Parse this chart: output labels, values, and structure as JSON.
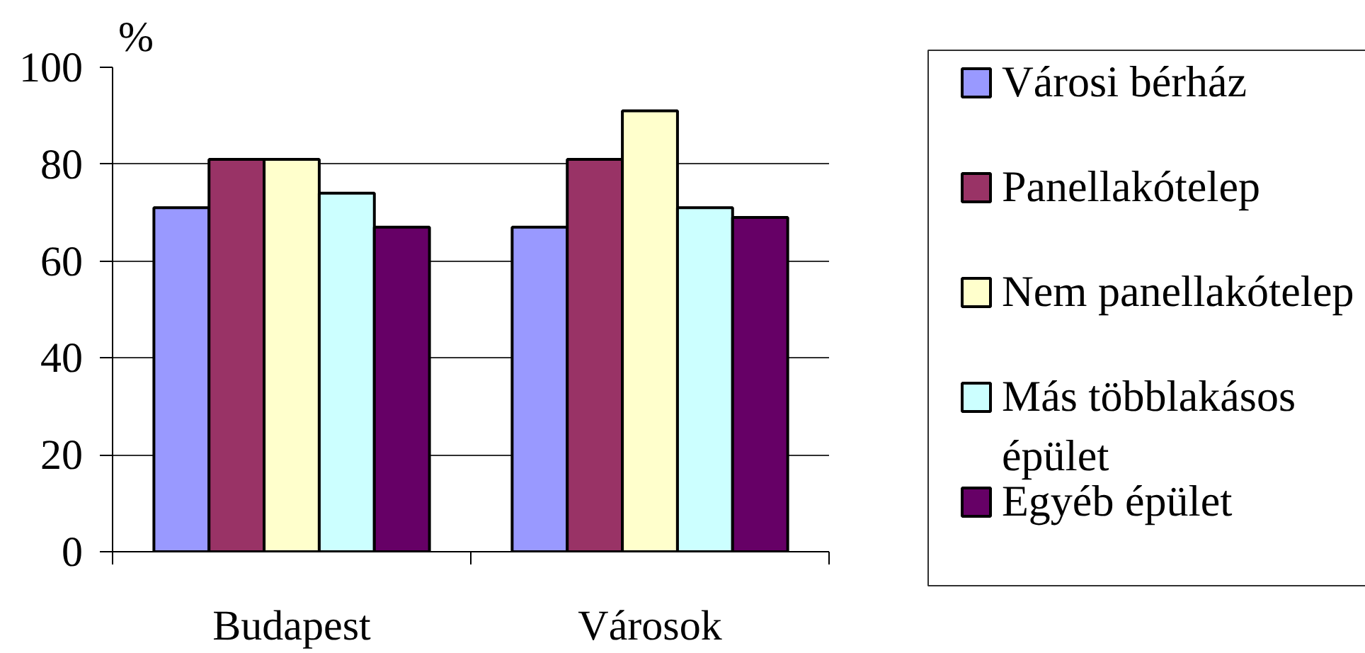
{
  "chart_data": {
    "type": "bar",
    "ylabel": "%",
    "categories": [
      "Budapest",
      "Városok"
    ],
    "series": [
      {
        "name": "Városi bérház",
        "color": "#9999ff",
        "values": [
          71,
          67
        ]
      },
      {
        "name": "Panellakótelep",
        "color": "#993366",
        "values": [
          81,
          81
        ]
      },
      {
        "name": "Nem panellakótelep",
        "color": "#ffffcc",
        "values": [
          81,
          91
        ]
      },
      {
        "name": "Más többlakásos épület",
        "color": "#ccffff",
        "values": [
          74,
          71
        ]
      },
      {
        "name": "Egyéb épület",
        "color": "#660066",
        "values": [
          67,
          69
        ]
      }
    ],
    "ylim": [
      0,
      100
    ],
    "yticks": [
      0,
      20,
      40,
      60,
      80,
      100
    ],
    "grid": "y",
    "legend": "right"
  }
}
